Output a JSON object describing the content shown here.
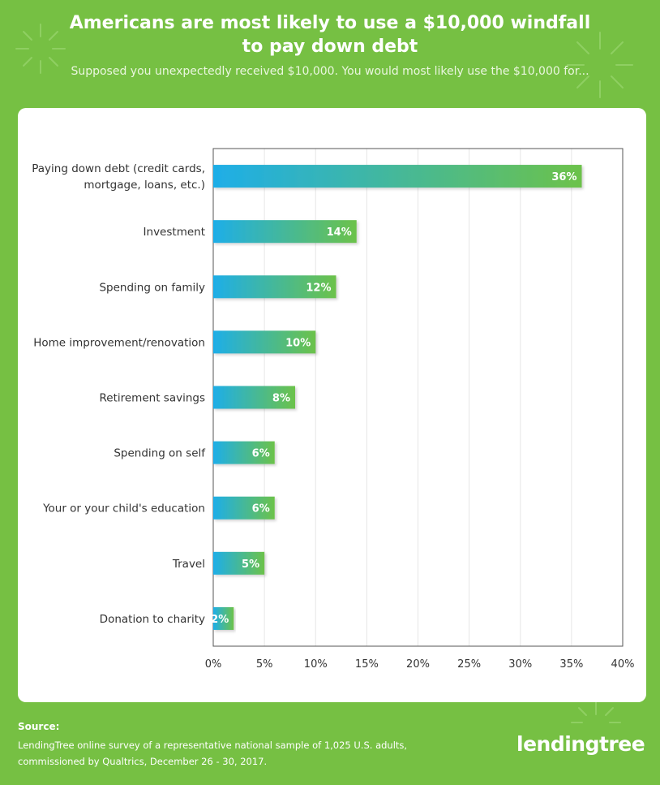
{
  "header": {
    "title_line1": "Americans are most likely to use a $10,000 windfall",
    "title_line2": "to pay down debt",
    "subtitle": "Supposed you unexpectedly received $10,000. You would most likely use the $10,000 for..."
  },
  "chart_data": {
    "type": "bar",
    "orientation": "horizontal",
    "categories": [
      [
        "Paying down debt (credit cards,",
        "mortgage, loans, etc.)"
      ],
      [
        "Investment"
      ],
      [
        "Spending on family"
      ],
      [
        "Home improvement/renovation"
      ],
      [
        "Retirement savings"
      ],
      [
        "Spending on self"
      ],
      [
        "Your or your child's education"
      ],
      [
        "Travel"
      ],
      [
        "Donation to charity"
      ]
    ],
    "values": [
      36,
      14,
      12,
      10,
      8,
      6,
      6,
      5,
      2
    ],
    "data_labels": [
      "36%",
      "14%",
      "12%",
      "10%",
      "8%",
      "6%",
      "6%",
      "5%",
      "2%"
    ],
    "xlim": [
      0,
      40
    ],
    "xticks": [
      0,
      5,
      10,
      15,
      20,
      25,
      30,
      35,
      40
    ],
    "xtick_labels": [
      "0%",
      "5%",
      "10%",
      "15%",
      "20%",
      "25%",
      "30%",
      "35%",
      "40%"
    ],
    "grid": true,
    "colors": {
      "bar_start": "#1eaee8",
      "bar_end": "#6cc24a",
      "grid": "#e6e6e6",
      "axis": "#555555",
      "text": "#333333"
    }
  },
  "footer": {
    "source_label": "Source:",
    "source_line1": "LendingTree online survey of a representative national sample of 1,025 U.S. adults,",
    "source_line2": "commissioned by Qualtrics, December 26 - 30, 2017."
  },
  "brand": {
    "logo_text": "lendingtree",
    "background": "#76c043"
  }
}
